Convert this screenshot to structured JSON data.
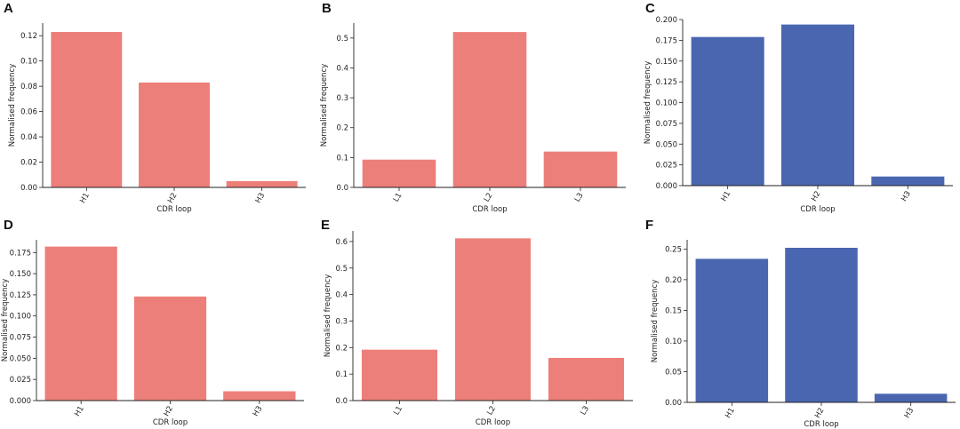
{
  "colors": {
    "red": "#ED7F7A",
    "blue": "#4A66B0"
  },
  "chart_data": [
    {
      "panel": "A",
      "type": "bar",
      "categories": [
        "H1",
        "H2",
        "H3"
      ],
      "values": [
        0.123,
        0.083,
        0.005
      ],
      "ylim": [
        0,
        0.13
      ],
      "yticks": [
        "0.00",
        "0.02",
        "0.04",
        "0.06",
        "0.08",
        "0.10",
        "0.12"
      ],
      "ytick_values": [
        0,
        0.02,
        0.04,
        0.06,
        0.08,
        0.1,
        0.12
      ],
      "xlabel": "CDR loop",
      "ylabel": "Normalised frequency",
      "color": "red"
    },
    {
      "panel": "B",
      "type": "bar",
      "categories": [
        "L1",
        "L2",
        "L3"
      ],
      "values": [
        0.093,
        0.52,
        0.12
      ],
      "ylim": [
        0,
        0.55
      ],
      "yticks": [
        "0.0",
        "0.1",
        "0.2",
        "0.3",
        "0.4",
        "0.5"
      ],
      "ytick_values": [
        0,
        0.1,
        0.2,
        0.3,
        0.4,
        0.5
      ],
      "xlabel": "CDR loop",
      "ylabel": "Normalised frequency",
      "color": "red"
    },
    {
      "panel": "C",
      "type": "bar",
      "categories": [
        "H1",
        "H2",
        "H3"
      ],
      "values": [
        0.179,
        0.194,
        0.011
      ],
      "ylim": [
        0,
        0.2
      ],
      "yticks": [
        "0.000",
        "0.025",
        "0.050",
        "0.075",
        "0.100",
        "0.125",
        "0.150",
        "0.175",
        "0.200"
      ],
      "ytick_values": [
        0,
        0.025,
        0.05,
        0.075,
        0.1,
        0.125,
        0.15,
        0.175,
        0.2
      ],
      "xlabel": "CDR loop",
      "ylabel": "Normalised frequency",
      "color": "blue"
    },
    {
      "panel": "D",
      "type": "bar",
      "categories": [
        "H1",
        "H2",
        "H3"
      ],
      "values": [
        0.182,
        0.123,
        0.011
      ],
      "ylim": [
        0,
        0.19
      ],
      "yticks": [
        "0.000",
        "0.025",
        "0.050",
        "0.075",
        "0.100",
        "0.125",
        "0.150",
        "0.175"
      ],
      "ytick_values": [
        0,
        0.025,
        0.05,
        0.075,
        0.1,
        0.125,
        0.15,
        0.175
      ],
      "xlabel": "CDR loop",
      "ylabel": "Normalised frequency",
      "color": "red"
    },
    {
      "panel": "E",
      "type": "bar",
      "categories": [
        "L1",
        "L2",
        "L3"
      ],
      "values": [
        0.192,
        0.612,
        0.161
      ],
      "ylim": [
        0,
        0.64
      ],
      "yticks": [
        "0.0",
        "0.1",
        "0.2",
        "0.3",
        "0.4",
        "0.5",
        "0.6"
      ],
      "ytick_values": [
        0,
        0.1,
        0.2,
        0.3,
        0.4,
        0.5,
        0.6
      ],
      "xlabel": "CDR loop",
      "ylabel": "Normalised frequency",
      "color": "red"
    },
    {
      "panel": "F",
      "type": "bar",
      "categories": [
        "H1",
        "H2",
        "H3"
      ],
      "values": [
        0.234,
        0.252,
        0.014
      ],
      "ylim": [
        0,
        0.265
      ],
      "yticks": [
        "0.00",
        "0.05",
        "0.10",
        "0.15",
        "0.20",
        "0.25"
      ],
      "ytick_values": [
        0,
        0.05,
        0.1,
        0.15,
        0.2,
        0.25
      ],
      "xlabel": "CDR loop",
      "ylabel": "Normalised frequency",
      "color": "blue"
    }
  ]
}
